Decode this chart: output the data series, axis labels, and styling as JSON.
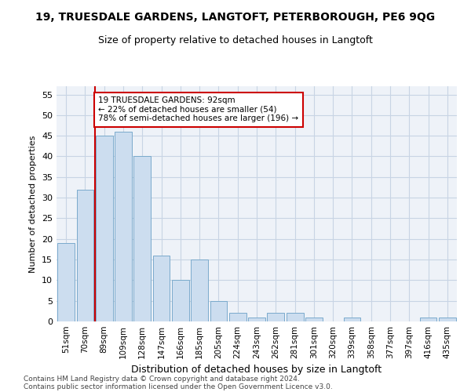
{
  "title": "19, TRUESDALE GARDENS, LANGTOFT, PETERBOROUGH, PE6 9QG",
  "subtitle": "Size of property relative to detached houses in Langtoft",
  "xlabel": "Distribution of detached houses by size in Langtoft",
  "ylabel": "Number of detached properties",
  "categories": [
    "51sqm",
    "70sqm",
    "89sqm",
    "109sqm",
    "128sqm",
    "147sqm",
    "166sqm",
    "185sqm",
    "205sqm",
    "224sqm",
    "243sqm",
    "262sqm",
    "281sqm",
    "301sqm",
    "320sqm",
    "339sqm",
    "358sqm",
    "377sqm",
    "397sqm",
    "416sqm",
    "435sqm"
  ],
  "values": [
    19,
    32,
    45,
    46,
    40,
    16,
    10,
    15,
    5,
    2,
    1,
    2,
    2,
    1,
    0,
    1,
    0,
    0,
    0,
    1,
    1
  ],
  "bar_color": "#ccddef",
  "bar_edge_color": "#7aaacc",
  "vline_x_index": 2,
  "vline_color": "#cc0000",
  "annotation_text": "19 TRUESDALE GARDENS: 92sqm\n← 22% of detached houses are smaller (54)\n78% of semi-detached houses are larger (196) →",
  "annotation_box_facecolor": "#ffffff",
  "annotation_box_edgecolor": "#cc0000",
  "ylim": [
    0,
    57
  ],
  "yticks": [
    0,
    5,
    10,
    15,
    20,
    25,
    30,
    35,
    40,
    45,
    50,
    55
  ],
  "footer_line1": "Contains HM Land Registry data © Crown copyright and database right 2024.",
  "footer_line2": "Contains public sector information licensed under the Open Government Licence v3.0.",
  "grid_color": "#c8d4e4",
  "background_color": "#eef2f8",
  "title_fontsize": 10,
  "subtitle_fontsize": 9,
  "ylabel_fontsize": 8,
  "xlabel_fontsize": 9
}
